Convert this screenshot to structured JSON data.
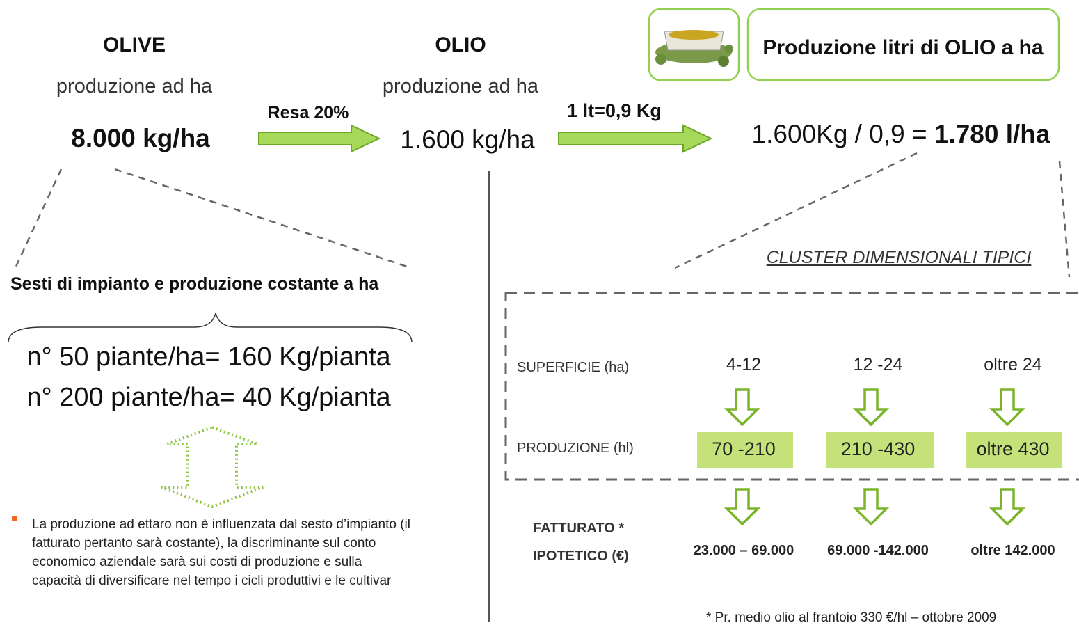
{
  "olive": {
    "title": "OLIVE",
    "subtitle": "produzione ad ha",
    "value": "8.000 kg/ha"
  },
  "arrow_resa": "Resa 20%",
  "olio": {
    "title": "OLIO",
    "subtitle": "produzione ad ha",
    "value": "1.600 kg/ha"
  },
  "arrow_conversion": "1 lt=0,9 Kg",
  "header": "Produzione litri di OLIO a ha",
  "formula": {
    "text": "1.600Kg / 0,9 = ",
    "result": "1.780 l/ha"
  },
  "sesti": {
    "title": "Sesti di impianto e produzione costante a ha",
    "lines": [
      "n° 50 piante/ha= 160 Kg/pianta",
      "n° 200 piante/ha= 40 Kg/pianta"
    ]
  },
  "note": "La produzione ad ettaro non è influenzata dal sesto d’impianto (il fatturato pertanto sarà costante), la discriminante  sul conto economico aziendale sarà sui costi di produzione e sulla capacità di diversificare nel tempo i cicli produttivi e le cultivar",
  "cluster": {
    "title": "CLUSTER DIMENSIONALI TIPICI",
    "superficie": {
      "label": "SUPERFICIE (ha)",
      "values": [
        "4-12",
        "12 -24",
        "oltre 24"
      ]
    },
    "produzione": {
      "label": "PRODUZIONE (hl)",
      "values": [
        "70 -210",
        "210 -430",
        "oltre 430"
      ]
    },
    "fatturato": {
      "label": [
        "FATTURATO *",
        "IPOTETICO (€)"
      ],
      "values": [
        "23.000 – 69.000",
        "69.000 -142.000",
        "oltre 142.000"
      ]
    },
    "footnote": "* Pr. medio olio al frantoio 330 €/hl – ottobre 2009"
  }
}
